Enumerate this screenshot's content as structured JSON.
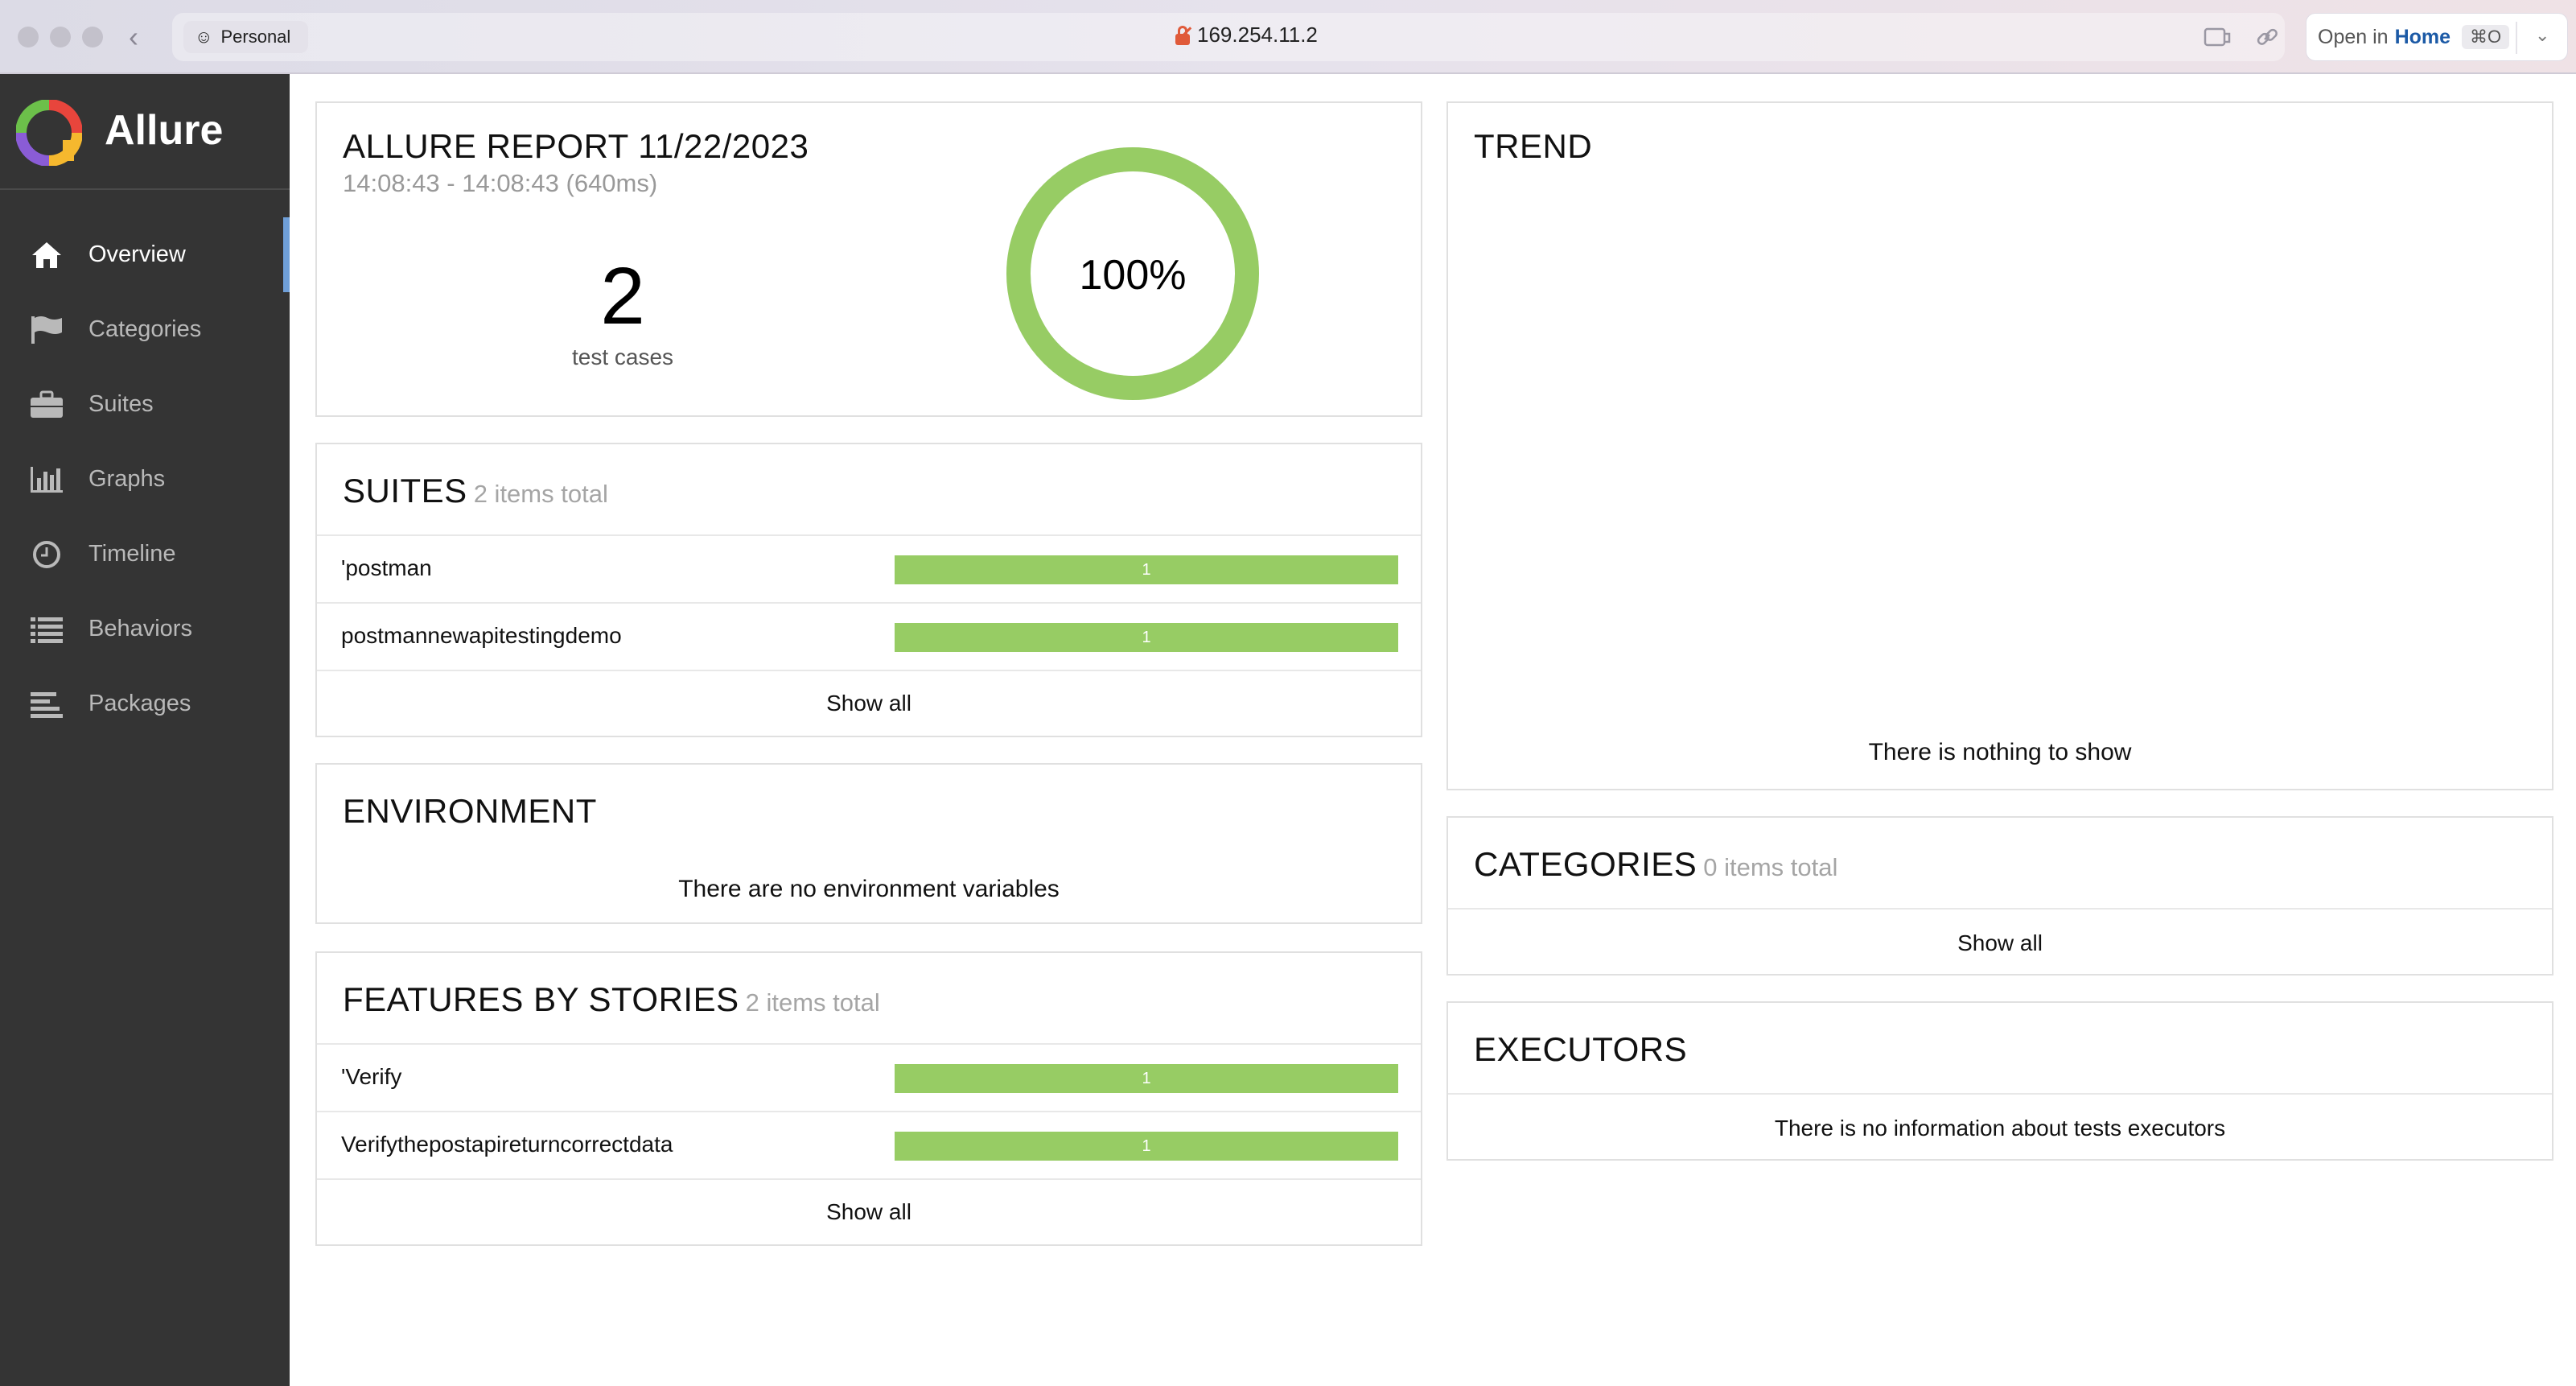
{
  "browser": {
    "profile": "Personal",
    "address": "169.254.11.2",
    "open_in_prefix": "Open in",
    "open_in_target": "Home",
    "open_in_shortcut": "⌘O"
  },
  "sidebar": {
    "brand": "Allure",
    "items": [
      {
        "label": "Overview",
        "icon": "home-icon",
        "active": true
      },
      {
        "label": "Categories",
        "icon": "flag-icon",
        "active": false
      },
      {
        "label": "Suites",
        "icon": "briefcase-icon",
        "active": false
      },
      {
        "label": "Graphs",
        "icon": "bar-chart-icon",
        "active": false
      },
      {
        "label": "Timeline",
        "icon": "clock-icon",
        "active": false
      },
      {
        "label": "Behaviors",
        "icon": "list-icon",
        "active": false
      },
      {
        "label": "Packages",
        "icon": "align-left-icon",
        "active": false
      }
    ]
  },
  "summary": {
    "title": "ALLURE REPORT 11/22/2023",
    "time_range": "14:08:43 - 14:08:43 (640ms)",
    "test_count": "2",
    "test_count_label": "test cases",
    "percent_label": "100%",
    "passed_fraction": 1.0,
    "ring_color": "#97cc64"
  },
  "suites": {
    "title": "SUITES",
    "count": "2 items total",
    "rows": [
      {
        "name": "'postman",
        "value": "1"
      },
      {
        "name": "postmannewapitestingdemo",
        "value": "1"
      }
    ],
    "show_all": "Show all"
  },
  "environment": {
    "title": "ENVIRONMENT",
    "message": "There are no environment variables"
  },
  "features": {
    "title": "FEATURES BY STORIES",
    "count": "2 items total",
    "rows": [
      {
        "name": "'Verify",
        "value": "1"
      },
      {
        "name": "Verifythepostapireturncorrectdata",
        "value": "1"
      }
    ],
    "show_all": "Show all"
  },
  "trend": {
    "title": "TREND",
    "message": "There is nothing to show"
  },
  "categories": {
    "title": "CATEGORIES",
    "count": "0 items total",
    "show_all": "Show all"
  },
  "executors": {
    "title": "EXECUTORS",
    "message": "There is no information about tests executors"
  },
  "colors": {
    "passed": "#97cc64",
    "sidebar_bg": "#343434",
    "active_marker": "#6f9fd8"
  }
}
